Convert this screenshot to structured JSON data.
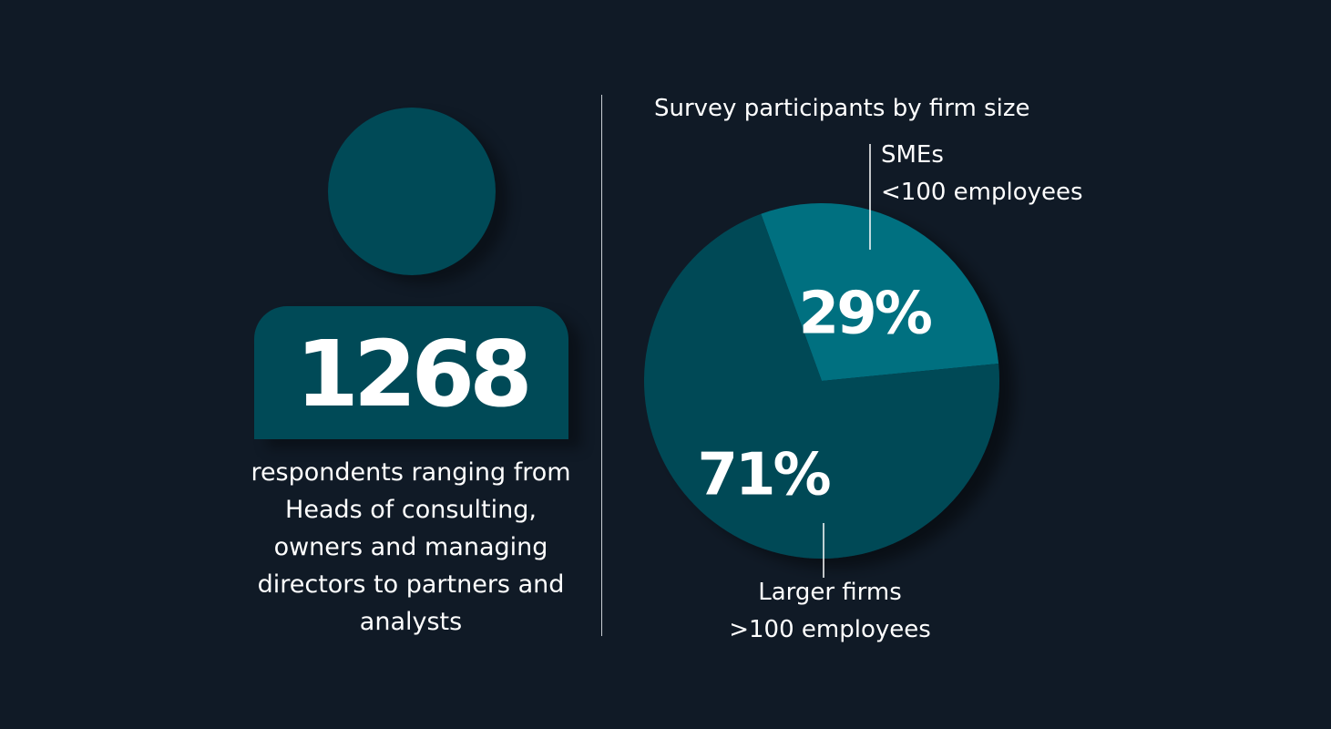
{
  "respondents": {
    "count": "1268",
    "description": "respondents ranging from Heads of consulting, owners and managing directors to partners and analysts"
  },
  "colors": {
    "background": "#101a26",
    "figure": "#004a57",
    "sme_slice": "#007080",
    "larger_slice": "#004a57"
  },
  "chart_data": {
    "type": "pie",
    "title": "Survey participants by firm size",
    "slices": [
      {
        "name_line1": "SMEs",
        "name_line2": "<100 employees",
        "value": 29,
        "label": "29%",
        "color": "#007080"
      },
      {
        "name_line1": "Larger firms",
        "name_line2": ">100 employees",
        "value": 71,
        "label": "71%",
        "color": "#004a57"
      }
    ]
  }
}
